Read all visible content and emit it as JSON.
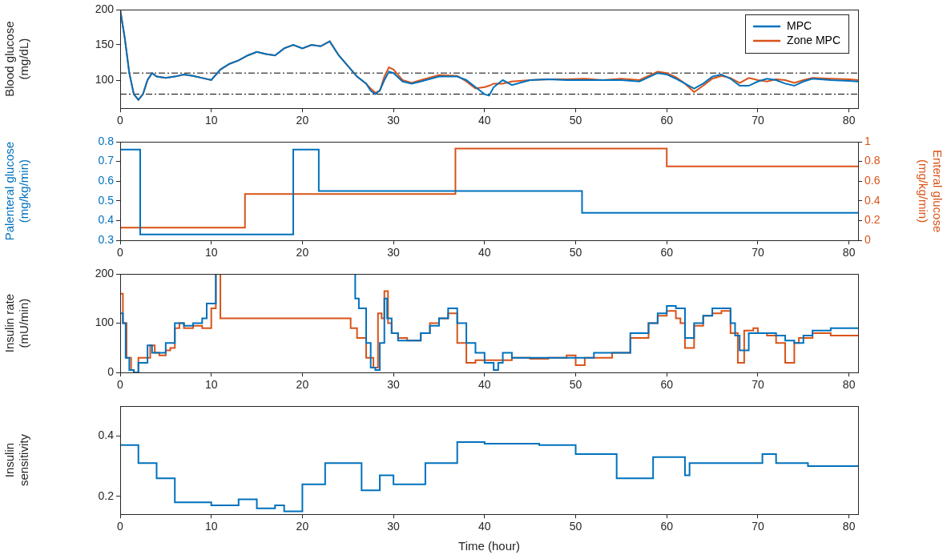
{
  "chart_data": [
    {
      "type": "line",
      "ylabel": [
        "Blood glucose",
        "(mg/dL)"
      ],
      "xlim": [
        0,
        81
      ],
      "xticks": [
        0,
        10,
        20,
        30,
        40,
        50,
        60,
        70,
        80
      ],
      "ylim": [
        60,
        200
      ],
      "yticks": [
        100,
        150,
        200
      ],
      "grid": false,
      "legend": "upper right",
      "hlines": [
        80,
        110
      ],
      "series": [
        {
          "name": "MPC",
          "color": "#0072BD",
          "line_style": "solid",
          "x": [
            0,
            0.5,
            1,
            1.5,
            2,
            2.5,
            3,
            3.5,
            4,
            5,
            6,
            7,
            8,
            9,
            10,
            11,
            12,
            13,
            14,
            15,
            16,
            17,
            18,
            19,
            20,
            21,
            22,
            23,
            24,
            25,
            26,
            27,
            27.5,
            28,
            28.5,
            29,
            29.5,
            30,
            31,
            32,
            33,
            35,
            37,
            38,
            39,
            40,
            40.5,
            41,
            42,
            43,
            45,
            47,
            49,
            51,
            53,
            55,
            57,
            59,
            60,
            61,
            62,
            63,
            64,
            65,
            66,
            67,
            68,
            69,
            70,
            71,
            72,
            73,
            74,
            75,
            76,
            78,
            80,
            81
          ],
          "values": [
            200,
            160,
            110,
            80,
            72,
            80,
            100,
            110,
            105,
            103,
            105,
            108,
            106,
            103,
            100,
            115,
            123,
            128,
            135,
            140,
            137,
            135,
            145,
            150,
            145,
            150,
            148,
            155,
            135,
            120,
            105,
            95,
            85,
            80,
            85,
            100,
            112,
            110,
            98,
            95,
            98,
            105,
            105,
            100,
            90,
            80,
            78,
            90,
            100,
            93,
            100,
            101,
            100,
            100,
            100,
            100,
            98,
            110,
            108,
            102,
            95,
            88,
            95,
            105,
            108,
            102,
            92,
            92,
            98,
            102,
            100,
            95,
            92,
            98,
            102,
            100,
            99,
            98
          ]
        },
        {
          "name": "Zone MPC",
          "color": "#D95319",
          "line_style": "solid",
          "x": [
            0,
            0.5,
            1,
            1.5,
            2,
            2.5,
            3,
            3.5,
            4,
            5,
            6,
            7,
            8,
            9,
            10,
            11,
            12,
            13,
            14,
            15,
            16,
            17,
            18,
            19,
            20,
            21,
            22,
            23,
            24,
            25,
            26,
            27,
            27.5,
            28,
            28.5,
            29,
            29.5,
            30,
            31,
            32,
            33,
            35,
            37,
            38,
            39,
            40,
            40.5,
            41,
            42,
            43,
            45,
            47,
            49,
            51,
            53,
            55,
            57,
            59,
            60,
            61,
            62,
            63,
            64,
            65,
            66,
            67,
            68,
            69,
            70,
            71,
            72,
            73,
            74,
            75,
            76,
            78,
            80,
            81
          ],
          "values": [
            200,
            160,
            110,
            80,
            72,
            80,
            100,
            110,
            105,
            103,
            105,
            108,
            106,
            103,
            100,
            115,
            123,
            128,
            135,
            140,
            137,
            135,
            145,
            150,
            145,
            150,
            148,
            155,
            135,
            120,
            105,
            95,
            88,
            82,
            85,
            105,
            118,
            115,
            100,
            96,
            100,
            107,
            106,
            98,
            88,
            90,
            92,
            95,
            95,
            98,
            100,
            101,
            101,
            102,
            100,
            102,
            100,
            112,
            110,
            104,
            95,
            83,
            92,
            102,
            106,
            103,
            96,
            103,
            100,
            98,
            101,
            100,
            96,
            100,
            103,
            102,
            101,
            100
          ]
        }
      ]
    },
    {
      "type": "line",
      "ylabel": [
        "Palenteral glucose",
        "(mg/kg/min)"
      ],
      "y2label": [
        "Enteral glucose",
        "(mg/kg/min)"
      ],
      "xlim": [
        0,
        81
      ],
      "xticks": [
        0,
        10,
        20,
        30,
        40,
        50,
        60,
        70,
        80
      ],
      "ylim": [
        0.3,
        0.8
      ],
      "yticks": [
        0.3,
        0.4,
        0.5,
        0.6,
        0.7,
        0.8
      ],
      "y2lim": [
        0,
        1
      ],
      "y2ticks": [
        0,
        0.2,
        0.4,
        0.6,
        0.8,
        1
      ],
      "grid": false,
      "series": [
        {
          "color": "#0072BD",
          "line_style": "steps",
          "x": [
            0,
            2.2,
            19,
            21.8,
            50.7,
            61,
            81
          ],
          "values": [
            0.55,
            0.76,
            0.33,
            0.76,
            0.55,
            0.44,
            0.44
          ]
        },
        {
          "color": "#D95319",
          "line_style": "steps",
          "axis": "y2",
          "x": [
            0,
            13.7,
            36.8,
            60,
            75.7,
            81
          ],
          "values": [
            0,
            0.13,
            0.47,
            0.93,
            0.75,
            0.75
          ]
        }
      ]
    },
    {
      "type": "line",
      "ylabel": [
        "Insulin rate",
        "(mU/min)"
      ],
      "xlim": [
        0,
        81
      ],
      "xticks": [
        0,
        10,
        20,
        30,
        40,
        50,
        60,
        70,
        80
      ],
      "ylim": [
        0,
        200
      ],
      "yticks": [
        0,
        100,
        200
      ],
      "grid": false,
      "series": [
        {
          "color": "#0072BD",
          "line_style": "steps",
          "x": [
            0,
            0.3,
            0.6,
            1,
            1.5,
            2,
            3,
            3.5,
            4,
            5,
            6,
            7,
            8,
            9,
            9.5,
            10.5,
            11,
            25.8,
            26.2,
            27,
            27.5,
            28,
            28.5,
            29,
            29.3,
            29.8,
            30.5,
            32,
            33,
            34,
            35,
            36,
            37,
            38,
            39,
            40,
            41,
            41.5,
            42,
            43,
            44,
            46,
            48,
            50,
            52,
            54,
            56,
            58,
            59,
            60,
            61,
            62,
            63,
            64,
            65,
            66,
            67,
            67.5,
            68,
            69,
            70,
            72,
            73,
            74,
            75,
            76,
            78,
            80,
            81
          ],
          "values": [
            0,
            120,
            100,
            30,
            5,
            0,
            20,
            55,
            40,
            40,
            60,
            100,
            95,
            100,
            110,
            140,
            200,
            200,
            150,
            130,
            60,
            10,
            5,
            60,
            150,
            110,
            80,
            65,
            65,
            80,
            95,
            110,
            130,
            100,
            60,
            40,
            20,
            5,
            20,
            40,
            30,
            30,
            30,
            30,
            30,
            40,
            40,
            80,
            100,
            120,
            135,
            130,
            70,
            100,
            115,
            130,
            130,
            100,
            75,
            45,
            80,
            80,
            75,
            65,
            60,
            75,
            85,
            90,
            90
          ]
        },
        {
          "color": "#D95319",
          "line_style": "steps",
          "x": [
            0,
            0.3,
            0.7,
            1.2,
            1.5,
            2,
            3.3,
            3.8,
            4.3,
            5,
            5.5,
            6,
            6.5,
            7,
            8,
            9,
            10,
            10.5,
            11,
            25.3,
            26,
            27,
            27.8,
            28.3,
            28.7,
            29,
            29.4,
            29.8,
            30.5,
            31.5,
            33,
            34,
            35,
            36,
            37,
            38,
            39,
            41,
            43,
            45,
            47,
            49,
            50,
            51,
            52,
            54,
            56,
            58,
            59,
            60,
            61,
            61.5,
            62,
            63,
            64,
            65,
            66,
            67,
            67.8,
            68.5,
            69.5,
            70,
            71,
            72,
            73,
            74,
            74.5,
            76,
            78,
            80,
            81
          ],
          "values": [
            0,
            160,
            100,
            30,
            5,
            0,
            30,
            55,
            40,
            35,
            45,
            50,
            90,
            100,
            90,
            95,
            90,
            130,
            200,
            110,
            90,
            70,
            30,
            10,
            120,
            110,
            165,
            100,
            80,
            70,
            65,
            80,
            100,
            110,
            120,
            60,
            20,
            25,
            25,
            30,
            28,
            30,
            35,
            15,
            30,
            30,
            40,
            70,
            100,
            115,
            125,
            110,
            100,
            50,
            95,
            115,
            120,
            125,
            80,
            20,
            85,
            90,
            80,
            75,
            60,
            20,
            60,
            70,
            80,
            75,
            75
          ]
        }
      ]
    },
    {
      "type": "line",
      "ylabel": [
        "Insulin",
        "sensitivity"
      ],
      "xlabel": "Time (hour)",
      "xlim": [
        0,
        81
      ],
      "xticks": [
        0,
        10,
        20,
        30,
        40,
        50,
        60,
        70,
        80
      ],
      "ylim": [
        0.14,
        0.5
      ],
      "yticks": [
        0.2,
        0.4
      ],
      "grid": false,
      "series": [
        {
          "color": "#0072BD",
          "line_style": "steps",
          "x": [
            0,
            2,
            4,
            6,
            10,
            13,
            15,
            17,
            18,
            20,
            22.5,
            26.5,
            28.5,
            30,
            33.5,
            37,
            40,
            46,
            50,
            54.5,
            58.5,
            62,
            62.5,
            66.5,
            70.5,
            72,
            75.5,
            78,
            81
          ],
          "values": [
            0.5,
            0.37,
            0.31,
            0.26,
            0.18,
            0.17,
            0.19,
            0.16,
            0.17,
            0.15,
            0.24,
            0.31,
            0.22,
            0.27,
            0.24,
            0.31,
            0.38,
            0.375,
            0.37,
            0.34,
            0.26,
            0.33,
            0.27,
            0.31,
            0.31,
            0.34,
            0.31,
            0.3,
            0.3
          ]
        }
      ]
    }
  ]
}
